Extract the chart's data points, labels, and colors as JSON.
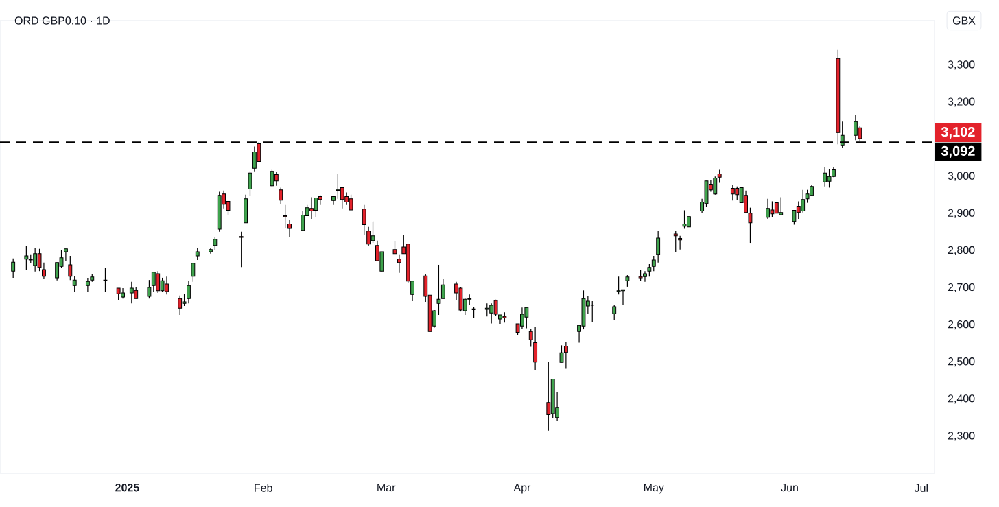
{
  "chart_data": {
    "type": "candlestick",
    "title": "ORD GBP0.10 · 1D",
    "ylabel": "GBX",
    "x": [
      "2024-12-06",
      "2024-12-09",
      "2024-12-10",
      "2024-12-11",
      "2024-12-12",
      "2024-12-13",
      "2024-12-16",
      "2024-12-17",
      "2024-12-18",
      "2024-12-19",
      "2024-12-20",
      "2024-12-23",
      "2024-12-24",
      "2024-12-27",
      "2024-12-30",
      "2024-12-31",
      "2025-01-02",
      "2025-01-03",
      "2025-01-06",
      "2025-01-07",
      "2025-01-08",
      "2025-01-09",
      "2025-01-10",
      "2025-01-13",
      "2025-01-14",
      "2025-01-15",
      "2025-01-16",
      "2025-01-17",
      "2025-01-20",
      "2025-01-21",
      "2025-01-22",
      "2025-01-23",
      "2025-01-24",
      "2025-01-27",
      "2025-01-28",
      "2025-01-29",
      "2025-01-30",
      "2025-01-31",
      "2025-02-03",
      "2025-02-04",
      "2025-02-05",
      "2025-02-06",
      "2025-02-07",
      "2025-02-10",
      "2025-02-11",
      "2025-02-12",
      "2025-02-13",
      "2025-02-14",
      "2025-02-17",
      "2025-02-18",
      "2025-02-19",
      "2025-02-20",
      "2025-02-21",
      "2025-02-24",
      "2025-02-25",
      "2025-02-26",
      "2025-02-27",
      "2025-02-28",
      "2025-03-03",
      "2025-03-04",
      "2025-03-05",
      "2025-03-06",
      "2025-03-07",
      "2025-03-10",
      "2025-03-11",
      "2025-03-12",
      "2025-03-13",
      "2025-03-14",
      "2025-03-17",
      "2025-03-18",
      "2025-03-19",
      "2025-03-20",
      "2025-03-21",
      "2025-03-24",
      "2025-03-25",
      "2025-03-26",
      "2025-03-27",
      "2025-03-28",
      "2025-03-31",
      "2025-04-01",
      "2025-04-02",
      "2025-04-03",
      "2025-04-04",
      "2025-04-07",
      "2025-04-08",
      "2025-04-09",
      "2025-04-10",
      "2025-04-11",
      "2025-04-14",
      "2025-04-15",
      "2025-04-16",
      "2025-04-17",
      "2025-04-22",
      "2025-04-23",
      "2025-04-24",
      "2025-04-25",
      "2025-04-28",
      "2025-04-29",
      "2025-04-30",
      "2025-05-01",
      "2025-05-02",
      "2025-05-06",
      "2025-05-07",
      "2025-05-08",
      "2025-05-09",
      "2025-05-12",
      "2025-05-13",
      "2025-05-14",
      "2025-05-15",
      "2025-05-16",
      "2025-05-19",
      "2025-05-20",
      "2025-05-21",
      "2025-05-22",
      "2025-05-23",
      "2025-05-27",
      "2025-05-28",
      "2025-05-29",
      "2025-05-30",
      "2025-06-02",
      "2025-06-03",
      "2025-06-04",
      "2025-06-05",
      "2025-06-06",
      "2025-06-09",
      "2025-06-10",
      "2025-06-11",
      "2025-06-12",
      "2025-06-13",
      "2025-06-16",
      "2025-06-17"
    ],
    "ohlc": [
      [
        2745,
        2779,
        2727,
        2769
      ],
      [
        2777,
        2812,
        2749,
        2786
      ],
      [
        2775,
        2790,
        2766,
        2776
      ],
      [
        2760,
        2807,
        2744,
        2792
      ],
      [
        2792,
        2805,
        2745,
        2755
      ],
      [
        2749,
        2768,
        2723,
        2731
      ],
      [
        2727,
        2768,
        2720,
        2768
      ],
      [
        2758,
        2801,
        2753,
        2781
      ],
      [
        2797,
        2805,
        2771,
        2805
      ],
      [
        2762,
        2786,
        2721,
        2731
      ],
      [
        2706,
        2732,
        2690,
        2721
      ],
      [
        2706,
        2727,
        2690,
        2717
      ],
      [
        2721,
        2736,
        2716,
        2729
      ],
      [
        2719,
        2753,
        2688,
        2721
      ],
      [
        2699,
        2699,
        2666,
        2684
      ],
      [
        2675,
        2699,
        2671,
        2686
      ],
      [
        2686,
        2716,
        2658,
        2699
      ],
      [
        2693,
        2701,
        2671,
        2671
      ],
      [
        2677,
        2721,
        2671,
        2701
      ],
      [
        2706,
        2742,
        2688,
        2742
      ],
      [
        2738,
        2745,
        2686,
        2692
      ],
      [
        2692,
        2727,
        2688,
        2719
      ],
      [
        2710,
        2730,
        2682,
        2690
      ],
      [
        2671,
        2679,
        2627,
        2645
      ],
      [
        2658,
        2684,
        2651,
        2662
      ],
      [
        2671,
        2719,
        2658,
        2706
      ],
      [
        2731,
        2766,
        2716,
        2766
      ],
      [
        2786,
        2807,
        2775,
        2797
      ],
      [
        2797,
        2808,
        2792,
        2803
      ],
      [
        2814,
        2836,
        2801,
        2831
      ],
      [
        2858,
        2959,
        2851,
        2949
      ],
      [
        2953,
        2962,
        2914,
        2925
      ],
      [
        2933,
        2933,
        2897,
        2909
      ],
      [
        2838,
        2851,
        2756,
        2836
      ],
      [
        2875,
        2951,
        2875,
        2940
      ],
      [
        2966,
        3014,
        2948,
        3009
      ],
      [
        3022,
        3081,
        3014,
        3066
      ],
      [
        3088,
        3092,
        3040,
        3040
      ],
      [
        2975,
        3018,
        2973,
        3014
      ],
      [
        3005,
        3012,
        2975,
        2988
      ],
      [
        2964,
        2970,
        2925,
        2936
      ],
      [
        2894,
        2923,
        2860,
        2892
      ],
      [
        2872,
        2883,
        2836,
        2860
      ],
      [
        2855,
        2907,
        2853,
        2896
      ],
      [
        2894,
        2923,
        2894,
        2916
      ],
      [
        2914,
        2944,
        2886,
        2907
      ],
      [
        2909,
        2942,
        2890,
        2942
      ],
      [
        2946,
        2949,
        2923,
        2938
      ],
      [
        2935,
        2946,
        2923,
        2946
      ],
      [
        2962,
        3007,
        2940,
        2964
      ],
      [
        2970,
        2972,
        2914,
        2938
      ],
      [
        2946,
        2957,
        2923,
        2931
      ],
      [
        2940,
        2951,
        2910,
        2910
      ],
      [
        2912,
        2923,
        2842,
        2870
      ],
      [
        2853,
        2864,
        2812,
        2818
      ],
      [
        2827,
        2879,
        2821,
        2840
      ],
      [
        2814,
        2827,
        2773,
        2773
      ],
      [
        2745,
        2797,
        2745,
        2797
      ],
      [
        2803,
        2827,
        2792,
        2792
      ],
      [
        2777,
        2790,
        2740,
        2768
      ],
      [
        2810,
        2842,
        2792,
        2792
      ],
      [
        2818,
        2818,
        2712,
        2718
      ],
      [
        2682,
        2718,
        2664,
        2718
      ],
      [
        2732,
        2736,
        2662,
        2677
      ],
      [
        2680,
        2680,
        2582,
        2582
      ],
      [
        2597,
        2640,
        2593,
        2638
      ],
      [
        2658,
        2762,
        2627,
        2669
      ],
      [
        2671,
        2725,
        2671,
        2708
      ],
      [
        2710,
        2716,
        2667,
        2686
      ],
      [
        2699,
        2701,
        2636,
        2640
      ],
      [
        2638,
        2671,
        2627,
        2669
      ],
      [
        2669,
        2682,
        2654,
        2671
      ],
      [
        2643,
        2649,
        2619,
        2641
      ],
      [
        2642,
        2658,
        2623,
        2645
      ],
      [
        2632,
        2658,
        2604,
        2653
      ],
      [
        2666,
        2668,
        2625,
        2629
      ],
      [
        2616,
        2627,
        2603,
        2627
      ],
      [
        2623,
        2634,
        2606,
        2619
      ],
      [
        2603,
        2603,
        2573,
        2580
      ],
      [
        2597,
        2647,
        2590,
        2629
      ],
      [
        2621,
        2647,
        2591,
        2647
      ],
      [
        2582,
        2590,
        2541,
        2560
      ],
      [
        2552,
        2595,
        2478,
        2500
      ],
      [
        2391,
        2500,
        2315,
        2358
      ],
      [
        2361,
        2454,
        2348,
        2454
      ],
      [
        2350,
        2419,
        2341,
        2378
      ],
      [
        2499,
        2545,
        2499,
        2525
      ],
      [
        2543,
        2554,
        2482,
        2526
      ],
      [
        2582,
        2599,
        2552,
        2599
      ],
      [
        2597,
        2693,
        2588,
        2671
      ],
      [
        2651,
        2677,
        2629,
        2664
      ],
      [
        2653,
        2664,
        2608,
        2653
      ],
      [
        2630,
        2653,
        2614,
        2649
      ],
      [
        2690,
        2730,
        2682,
        2692
      ],
      [
        2692,
        2695,
        2654,
        2695
      ],
      [
        2719,
        2734,
        2703,
        2729
      ],
      [
        2730,
        2749,
        2719,
        2727
      ],
      [
        2730,
        2745,
        2716,
        2738
      ],
      [
        2745,
        2764,
        2730,
        2755
      ],
      [
        2758,
        2786,
        2745,
        2775
      ],
      [
        2790,
        2853,
        2768,
        2834
      ],
      [
        2845,
        2853,
        2797,
        2840
      ],
      [
        2833,
        2840,
        2803,
        2829
      ],
      [
        2866,
        2909,
        2859,
        2872
      ],
      [
        2864,
        2892,
        2864,
        2892
      ],
      [
        2907,
        2940,
        2901,
        2931
      ],
      [
        2927,
        2988,
        2918,
        2988
      ],
      [
        2979,
        2990,
        2959,
        2964
      ],
      [
        2953,
        3000,
        2951,
        2996
      ],
      [
        3007,
        3018,
        2983,
        2998
      ],
      [
        2968,
        2977,
        2935,
        2953
      ],
      [
        2968,
        2973,
        2936,
        2951
      ],
      [
        2929,
        2970,
        2929,
        2970
      ],
      [
        2949,
        2962,
        2903,
        2903
      ],
      [
        2901,
        2916,
        2821,
        2875
      ],
      [
        2890,
        2940,
        2886,
        2914
      ],
      [
        2910,
        2933,
        2890,
        2899
      ],
      [
        2929,
        2929,
        2901,
        2901
      ],
      [
        2897,
        2944,
        2897,
        2903
      ],
      [
        2879,
        2909,
        2870,
        2909
      ],
      [
        2920,
        2933,
        2886,
        2903
      ],
      [
        2907,
        2964,
        2903,
        2938
      ],
      [
        2940,
        2964,
        2929,
        2953
      ],
      [
        2949,
        2977,
        2947,
        2973
      ],
      [
        2985,
        3026,
        2973,
        3009
      ],
      [
        2987,
        3020,
        2970,
        3000
      ],
      [
        3000,
        3026,
        2998,
        3018
      ],
      [
        3318,
        3341,
        3087,
        3118
      ],
      [
        3083,
        3148,
        3077,
        3111
      ],
      [
        3111,
        3165,
        3098,
        3148
      ],
      [
        3131,
        3137,
        3094,
        3102
      ]
    ],
    "xlim": [
      "2024-12-03",
      "2025-07-04"
    ],
    "xticks": [
      {
        "value": "2025-01-01",
        "label": "**2025**"
      },
      {
        "value": "2025-02-01",
        "label": "Feb"
      },
      {
        "value": "2025-03-01",
        "label": "Mar"
      },
      {
        "value": "2025-04-01",
        "label": "Apr"
      },
      {
        "value": "2025-05-01",
        "label": "May"
      },
      {
        "value": "2025-06-01",
        "label": "Jun"
      },
      {
        "value": "2025-07-01",
        "label": "Jul"
      }
    ],
    "ylim": [
      2200,
      3420
    ],
    "yticks": [
      {
        "value": 2300,
        "label": "2,300"
      },
      {
        "value": 2400,
        "label": "2,400"
      },
      {
        "value": 2500,
        "label": "2,500"
      },
      {
        "value": 2600,
        "label": "2,600"
      },
      {
        "value": 2700,
        "label": "2,700"
      },
      {
        "value": 2800,
        "label": "2,800"
      },
      {
        "value": 2900,
        "label": "2,900"
      },
      {
        "value": 3000,
        "label": "3,000"
      },
      {
        "value": 3200,
        "label": "3,200"
      },
      {
        "value": 3300,
        "label": "3,300"
      }
    ],
    "ref_lines": [
      {
        "axis": "y",
        "value": 3092,
        "label": "3,092",
        "color": "#000000",
        "line_style": "dashed"
      }
    ],
    "annotations": [
      "3,102"
    ]
  }
}
